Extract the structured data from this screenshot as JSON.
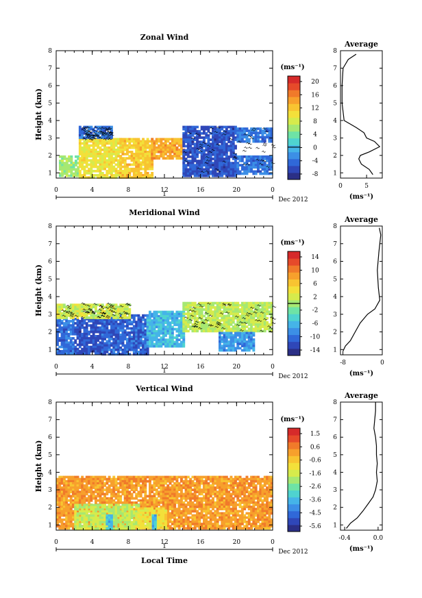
{
  "figure": {
    "xlabel": "Local Time",
    "date_label": "Dec 2012",
    "day_label": "1"
  },
  "chart_data": [
    {
      "type": "heatmap",
      "title": "Zonal Wind",
      "ylabel": "Height (km)",
      "xlabel": "Local Time",
      "x_ticks": [
        "0",
        "4",
        "8",
        "12",
        "16",
        "20",
        "0"
      ],
      "y_ticks": [
        "1",
        "2",
        "3",
        "4",
        "5",
        "6",
        "7",
        "8"
      ],
      "xlim": [
        0,
        24
      ],
      "ylim": [
        0.7,
        8
      ],
      "units": "(ms⁻¹)",
      "colorbar": {
        "ticks": [
          "20",
          "16",
          "12",
          "8",
          "4",
          "0",
          "-4",
          "-8"
        ],
        "range": [
          -10,
          22
        ],
        "contour": 0
      },
      "regions": [
        {
          "x": [
            0.3,
            2.5
          ],
          "y": [
            0.8,
            2.0
          ],
          "value": 6
        },
        {
          "x": [
            2.5,
            7.0
          ],
          "y": [
            0.8,
            3.0
          ],
          "value": 10
        },
        {
          "x": [
            2.5,
            6.0
          ],
          "y": [
            3.0,
            3.7
          ],
          "value": -4
        },
        {
          "x": [
            7.0,
            10.5
          ],
          "y": [
            0.8,
            3.0
          ],
          "value": 12
        },
        {
          "x": [
            10.5,
            14.0
          ],
          "y": [
            1.8,
            3.0
          ],
          "value": 14
        },
        {
          "x": [
            14.0,
            20.0
          ],
          "y": [
            0.8,
            3.7
          ],
          "value": -6
        },
        {
          "x": [
            20.0,
            24.0
          ],
          "y": [
            1.0,
            2.0
          ],
          "value": -4
        },
        {
          "x": [
            20.0,
            24.0
          ],
          "y": [
            2.8,
            3.6
          ],
          "value": -4
        }
      ],
      "average": {
        "title": "Average",
        "xlabel": "(ms⁻¹)",
        "x_ticks": [
          "0",
          "5"
        ],
        "xlim": [
          0,
          8
        ],
        "height": [
          0.9,
          1.2,
          1.5,
          1.8,
          2.0,
          2.2,
          2.5,
          2.8,
          3.0,
          3.3,
          3.6,
          4.0,
          5.0,
          6.0,
          7.0,
          7.5,
          7.8
        ],
        "value": [
          6.2,
          5.5,
          4.0,
          3.5,
          3.8,
          5.5,
          7.5,
          6.5,
          5.0,
          4.5,
          3.0,
          0.7,
          0.3,
          0.3,
          0.5,
          1.5,
          3.0
        ]
      }
    },
    {
      "type": "heatmap",
      "title": "Meridional Wind",
      "ylabel": "Height (km)",
      "xlabel": "Local Time",
      "x_ticks": [
        "0",
        "4",
        "8",
        "12",
        "16",
        "20",
        "0"
      ],
      "y_ticks": [
        "1",
        "2",
        "3",
        "4",
        "5",
        "6",
        "7",
        "8"
      ],
      "xlim": [
        0,
        24
      ],
      "ylim": [
        0.7,
        8
      ],
      "units": "(ms⁻¹)",
      "colorbar": {
        "ticks": [
          "14",
          "10",
          "6",
          "2",
          "-2",
          "-6",
          "-10",
          "-14"
        ],
        "range": [
          -16,
          16
        ],
        "contour": 0
      },
      "regions": [
        {
          "x": [
            0.0,
            2.0
          ],
          "y": [
            0.8,
            2.8
          ],
          "value": -10
        },
        {
          "x": [
            2.0,
            5.0
          ],
          "y": [
            0.8,
            2.8
          ],
          "value": -12
        },
        {
          "x": [
            5.0,
            10.0
          ],
          "y": [
            0.8,
            3.0
          ],
          "value": -11
        },
        {
          "x": [
            10.0,
            14.0
          ],
          "y": [
            1.2,
            3.2
          ],
          "value": -6
        },
        {
          "x": [
            0.0,
            8.0
          ],
          "y": [
            2.8,
            3.6
          ],
          "value": 2
        },
        {
          "x": [
            14.0,
            24.0
          ],
          "y": [
            2.0,
            3.7
          ],
          "value": 1
        },
        {
          "x": [
            18.0,
            22.0
          ],
          "y": [
            1.0,
            2.0
          ],
          "value": -8
        }
      ],
      "average": {
        "title": "Average",
        "xlabel": "(ms⁻¹)",
        "x_ticks": [
          "-8",
          "0"
        ],
        "xlim": [
          -8.5,
          0
        ],
        "height": [
          0.9,
          1.2,
          1.5,
          2.0,
          2.5,
          3.0,
          3.3,
          3.8,
          4.5,
          5.5,
          6.5,
          7.5,
          7.9
        ],
        "value": [
          -8.0,
          -7.5,
          -6.5,
          -5.5,
          -4.5,
          -3.0,
          -1.5,
          -0.5,
          -0.8,
          -1.0,
          -0.7,
          -0.3,
          -0.6
        ]
      }
    },
    {
      "type": "heatmap",
      "title": "Vertical Wind",
      "ylabel": "Height (km)",
      "xlabel": "Local Time",
      "x_ticks": [
        "0",
        "4",
        "8",
        "12",
        "16",
        "20",
        "0"
      ],
      "y_ticks": [
        "1",
        "2",
        "3",
        "4",
        "5",
        "6",
        "7",
        "8"
      ],
      "xlim": [
        0,
        24
      ],
      "ylim": [
        0.7,
        8
      ],
      "units": "(ms⁻¹)",
      "colorbar": {
        "ticks": [
          "1.5",
          "0.6",
          "-0.6",
          "-1.6",
          "-2.6",
          "-3.6",
          "-4.5",
          "-5.6"
        ],
        "range": [
          -6.2,
          2.2
        ]
      },
      "regions": [
        {
          "x": [
            0.0,
            24.0
          ],
          "y": [
            0.8,
            3.8
          ],
          "value": 0.3
        },
        {
          "x": [
            2.0,
            9.0
          ],
          "y": [
            0.8,
            2.2
          ],
          "value": -1.6
        },
        {
          "x": [
            9.0,
            12.0
          ],
          "y": [
            0.8,
            2.0
          ],
          "value": -1.0
        },
        {
          "x": [
            5.5,
            6.0
          ],
          "y": [
            0.8,
            1.6
          ],
          "value": -3.6
        },
        {
          "x": [
            10.6,
            11.0
          ],
          "y": [
            0.8,
            1.6
          ],
          "value": -3.6
        }
      ],
      "average": {
        "title": "Average",
        "xlabel": "(ms⁻¹)",
        "x_ticks": [
          "-0.4",
          "0.0"
        ],
        "xlim": [
          -0.45,
          0.05
        ],
        "height": [
          0.8,
          1.1,
          1.4,
          1.8,
          2.2,
          2.6,
          3.0,
          3.5,
          4.0,
          4.5,
          5.0,
          5.5,
          6.0,
          6.5,
          7.0,
          7.5,
          8.0
        ],
        "value": [
          -0.38,
          -0.33,
          -0.25,
          -0.18,
          -0.12,
          -0.06,
          -0.03,
          -0.01,
          -0.02,
          -0.01,
          -0.02,
          -0.02,
          -0.03,
          -0.05,
          -0.04,
          -0.03,
          -0.03
        ]
      }
    }
  ],
  "colormap": [
    "#2b2f86",
    "#2f47b8",
    "#3068d8",
    "#3c8fe6",
    "#45b4e8",
    "#4fd3d0",
    "#6ee3a6",
    "#a6e872",
    "#d6eb4c",
    "#f3e03a",
    "#f8c431",
    "#f7a02c",
    "#f07a2a",
    "#e64a2a",
    "#d62a2a"
  ]
}
